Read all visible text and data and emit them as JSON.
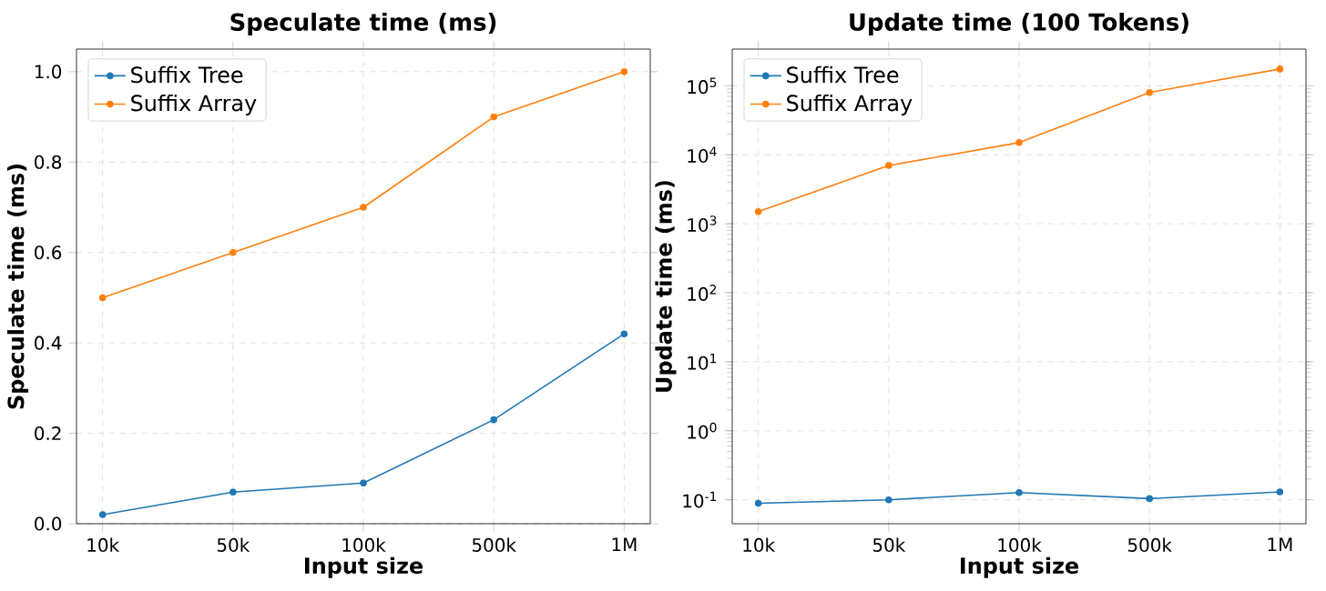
{
  "chart_data": [
    {
      "type": "line",
      "title": "Speculate time (ms)",
      "xlabel": "Input size",
      "ylabel": "Speculate time (ms)",
      "categories": [
        "10k",
        "50k",
        "100k",
        "500k",
        "1M"
      ],
      "series": [
        {
          "name": "Suffix Tree",
          "color": "#1f77b4",
          "values": [
            0.02,
            0.07,
            0.09,
            0.23,
            0.42
          ]
        },
        {
          "name": "Suffix Array",
          "color": "#ff7f0e",
          "values": [
            0.5,
            0.6,
            0.7,
            0.9,
            1.0
          ]
        }
      ],
      "ylim": [
        0,
        1.05
      ],
      "yticks": [
        {
          "value": 0,
          "label": "0.0"
        },
        {
          "value": 0.2,
          "label": "0.2"
        },
        {
          "value": 0.4,
          "label": "0.4"
        },
        {
          "value": 0.6,
          "label": "0.6"
        },
        {
          "value": 0.8,
          "label": "0.8"
        },
        {
          "value": 1.0,
          "label": "1.0"
        }
      ],
      "grid": true,
      "legend": "top left",
      "marker": "circle",
      "line_style": "solid"
    },
    {
      "type": "line",
      "title": "Update time (100 Tokens)",
      "xlabel": "Input size",
      "ylabel": "Update time (ms)",
      "categories": [
        "10k",
        "50k",
        "100k",
        "500k",
        "1M"
      ],
      "series": [
        {
          "name": "Suffix Tree",
          "color": "#1f77b4",
          "values": [
            0.089,
            0.1,
            0.127,
            0.104,
            0.13
          ]
        },
        {
          "name": "Suffix Array",
          "color": "#ff7f0e",
          "values": [
            1500,
            7000,
            15000,
            80000,
            175000
          ]
        }
      ],
      "log": "y",
      "ylim": [
        0.045,
        340000
      ],
      "yticks": [
        {
          "value": 0.1,
          "label": "10$^{-1}$"
        },
        {
          "value": 1,
          "label": "10$^{0}$"
        },
        {
          "value": 10,
          "label": "10$^{1}$"
        },
        {
          "value": 100,
          "label": "10$^{2}$"
        },
        {
          "value": 1000,
          "label": "10$^{3}$"
        },
        {
          "value": 10000,
          "label": "10$^{4}$"
        },
        {
          "value": 100000,
          "label": "10$^{5}$"
        }
      ],
      "grid": true,
      "legend": "top left",
      "marker": "circle",
      "line_style": "solid"
    }
  ]
}
